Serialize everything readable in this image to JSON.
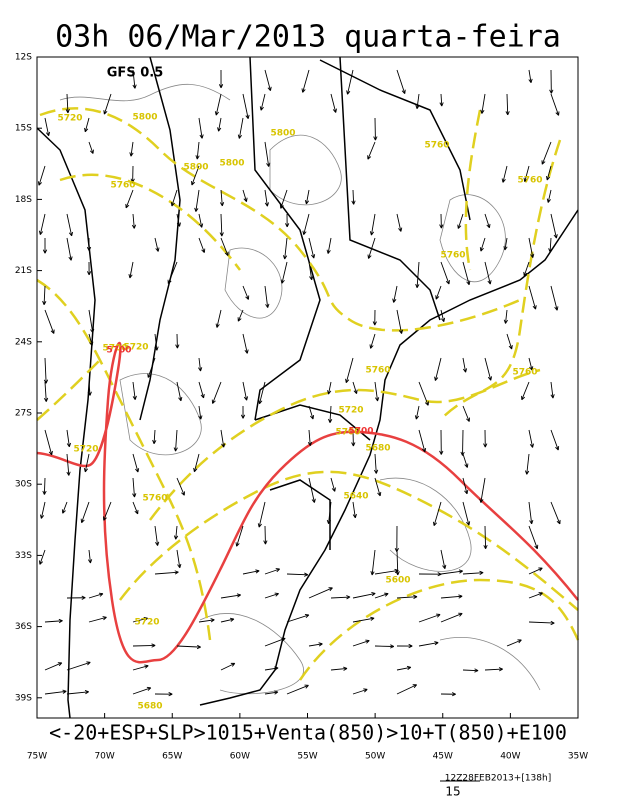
{
  "header": {
    "title": "03h 06/Mar/2013 quarta-feira",
    "model": "GFS 0.5"
  },
  "axes": {
    "lat_ticks": [
      "12S",
      "15S",
      "18S",
      "21S",
      "24S",
      "27S",
      "30S",
      "33S",
      "36S",
      "39S"
    ],
    "lon_ticks": [
      "75W",
      "70W",
      "65W",
      "60W",
      "55W",
      "50W",
      "45W",
      "40W",
      "35W"
    ]
  },
  "contour_labels": [
    "5720",
    "5800",
    "5800",
    "5800",
    "5800",
    "5760",
    "5760",
    "5760",
    "5760",
    "5760",
    "5700",
    "5720",
    "5760",
    "5720",
    "5720",
    "5700",
    "5680",
    "5640",
    "5760",
    "5600",
    "5720",
    "5680"
  ],
  "red_contour_labels": [
    "5700",
    "5700"
  ],
  "footer": {
    "caption": "<-20+ESP+SLP>1015+Venta(850)>10+T(850)+E100",
    "run": "12Z28FEB2013+[138h]",
    "vector_scale": "15"
  }
}
